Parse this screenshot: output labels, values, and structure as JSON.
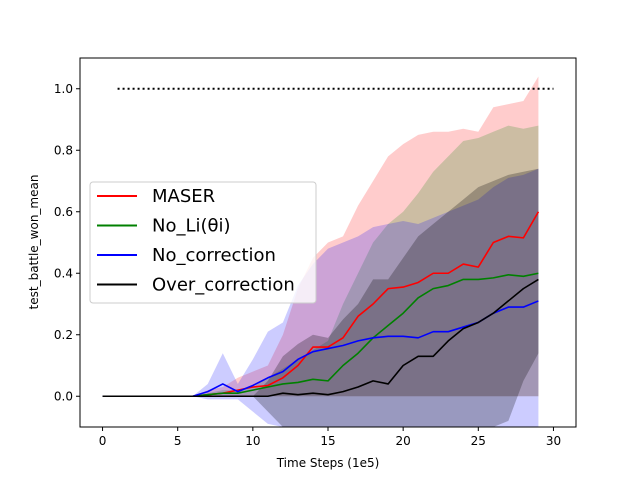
{
  "chart_data": {
    "type": "line",
    "title": "",
    "xlabel": "Time Steps (1e5)",
    "ylabel": "test_battle_won_mean",
    "xlim": [
      -1.5,
      31.5
    ],
    "ylim": [
      -0.1,
      1.1
    ],
    "xticks": [
      0,
      5,
      10,
      15,
      20,
      25,
      30
    ],
    "yticks": [
      0.0,
      0.2,
      0.4,
      0.6,
      0.8,
      1.0
    ],
    "xtick_labels": [
      "0",
      "5",
      "10",
      "15",
      "20",
      "25",
      "30"
    ],
    "ytick_labels": [
      "0.0",
      "0.2",
      "0.4",
      "0.6",
      "0.8",
      "1.0"
    ],
    "reference_line": {
      "y": 1.0,
      "x_start": 1,
      "x_end": 30,
      "style": "dotted",
      "color": "#000000"
    },
    "legend_position": "center-left",
    "x": [
      0,
      1,
      2,
      3,
      4,
      5,
      6,
      7,
      8,
      9,
      10,
      11,
      12,
      13,
      14,
      15,
      16,
      17,
      18,
      19,
      20,
      21,
      22,
      23,
      24,
      25,
      26,
      27,
      28,
      29
    ],
    "series": [
      {
        "name": "MASER",
        "color": "#ff0000",
        "fill": "rgba(255,0,0,0.2)",
        "values": [
          0,
          0,
          0,
          0,
          0,
          0,
          0,
          0.005,
          0.01,
          0.02,
          0.03,
          0.035,
          0.06,
          0.1,
          0.16,
          0.16,
          0.19,
          0.26,
          0.3,
          0.35,
          0.355,
          0.37,
          0.4,
          0.4,
          0.43,
          0.42,
          0.5,
          0.52,
          0.515,
          0.6
        ],
        "upper": [
          0,
          0,
          0,
          0,
          0,
          0,
          0,
          0.02,
          0.03,
          0.06,
          0.08,
          0.1,
          0.2,
          0.35,
          0.45,
          0.5,
          0.52,
          0.62,
          0.7,
          0.78,
          0.82,
          0.85,
          0.86,
          0.86,
          0.87,
          0.86,
          0.94,
          0.95,
          0.96,
          1.04
        ],
        "lower": [
          0,
          0,
          0,
          0,
          0,
          0,
          0,
          0,
          0,
          0,
          0,
          0,
          0,
          0,
          0,
          0,
          0,
          0,
          0,
          0,
          0,
          0,
          0,
          0,
          0,
          0,
          0,
          0,
          0,
          0
        ]
      },
      {
        "name": "No_Li(θi)",
        "color": "#008000",
        "fill": "rgba(0,128,0,0.2)",
        "values": [
          0,
          0,
          0,
          0,
          0,
          0,
          0,
          0.005,
          0.01,
          0.01,
          0.02,
          0.03,
          0.04,
          0.045,
          0.055,
          0.05,
          0.1,
          0.14,
          0.19,
          0.23,
          0.27,
          0.32,
          0.35,
          0.36,
          0.38,
          0.38,
          0.385,
          0.395,
          0.39,
          0.4
        ],
        "upper": [
          0,
          0,
          0,
          0,
          0,
          0,
          0,
          0.01,
          0.02,
          0.02,
          0.03,
          0.06,
          0.09,
          0.12,
          0.15,
          0.18,
          0.3,
          0.4,
          0.5,
          0.56,
          0.6,
          0.66,
          0.73,
          0.78,
          0.83,
          0.84,
          0.86,
          0.88,
          0.87,
          0.88
        ],
        "lower": [
          0,
          0,
          0,
          0,
          0,
          0,
          0,
          0,
          0,
          0,
          0,
          0,
          0,
          0,
          0,
          0,
          0,
          0,
          0,
          0,
          0,
          0,
          0,
          0,
          0,
          0,
          0,
          0,
          0,
          0
        ]
      },
      {
        "name": "No_correction",
        "color": "#0000ff",
        "fill": "rgba(0,0,255,0.2)",
        "values": [
          0,
          0,
          0,
          0,
          0,
          0,
          0,
          0.015,
          0.04,
          0.015,
          0.035,
          0.06,
          0.08,
          0.12,
          0.145,
          0.155,
          0.165,
          0.18,
          0.19,
          0.195,
          0.195,
          0.19,
          0.21,
          0.21,
          0.225,
          0.24,
          0.27,
          0.29,
          0.29,
          0.31
        ],
        "upper": [
          0,
          0,
          0,
          0,
          0,
          0,
          0,
          0.04,
          0.14,
          0.04,
          0.12,
          0.21,
          0.24,
          0.36,
          0.43,
          0.48,
          0.5,
          0.52,
          0.55,
          0.56,
          0.57,
          0.56,
          0.58,
          0.6,
          0.62,
          0.64,
          0.68,
          0.71,
          0.72,
          0.74
        ],
        "lower": [
          0,
          0,
          0,
          0,
          0,
          0,
          0,
          -0.01,
          -0.01,
          -0.01,
          -0.05,
          -0.09,
          -0.1,
          -0.1,
          -0.1,
          -0.1,
          -0.1,
          -0.1,
          -0.1,
          -0.1,
          -0.1,
          -0.1,
          -0.1,
          -0.1,
          -0.1,
          -0.1,
          -0.1,
          -0.1,
          -0.1,
          -0.1
        ]
      },
      {
        "name": "Over_correction",
        "color": "#000000",
        "fill": "rgba(0,0,0,0.25)",
        "values": [
          0,
          0,
          0,
          0,
          0,
          0,
          0,
          0,
          0,
          0,
          0,
          0,
          0.01,
          0.005,
          0.01,
          0.005,
          0.015,
          0.03,
          0.05,
          0.04,
          0.1,
          0.13,
          0.13,
          0.18,
          0.22,
          0.24,
          0.27,
          0.31,
          0.35,
          0.38
        ],
        "upper": [
          0,
          0,
          0,
          0,
          0,
          0,
          0,
          0,
          0,
          0,
          0,
          0.05,
          0.13,
          0.17,
          0.2,
          0.19,
          0.25,
          0.3,
          0.38,
          0.38,
          0.45,
          0.52,
          0.56,
          0.6,
          0.64,
          0.68,
          0.7,
          0.72,
          0.73,
          0.74
        ],
        "lower": [
          0,
          0,
          0,
          0,
          0,
          0,
          0,
          0,
          0,
          0,
          0,
          -0.05,
          -0.1,
          -0.1,
          -0.1,
          -0.1,
          -0.1,
          -0.1,
          -0.1,
          -0.1,
          -0.1,
          -0.1,
          -0.1,
          -0.1,
          -0.1,
          -0.1,
          -0.1,
          -0.08,
          0.05,
          0.14
        ]
      }
    ]
  }
}
